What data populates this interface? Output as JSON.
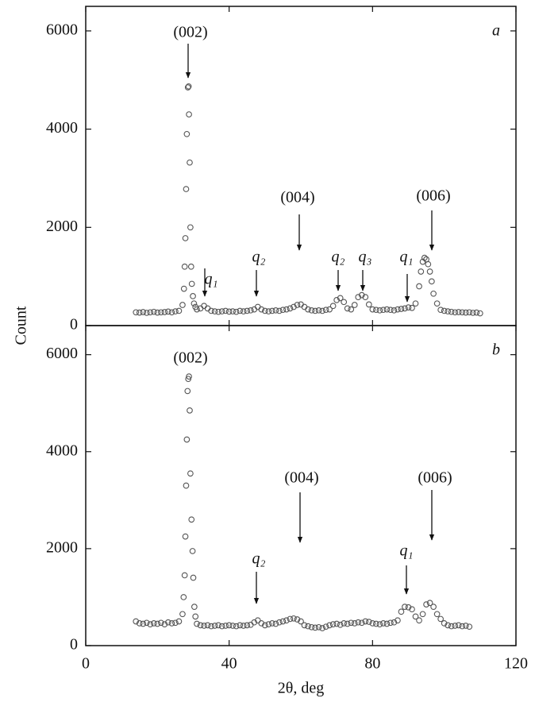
{
  "chart_data": [
    {
      "type": "scatter",
      "panel": "a",
      "ylabel": "Count",
      "x": [
        14,
        15,
        16,
        17,
        18,
        19,
        20,
        21,
        22,
        23,
        24,
        25,
        26,
        27,
        27.4,
        27.6,
        27.8,
        28,
        28.2,
        28.5,
        28.7,
        28.8,
        29,
        29.2,
        29.4,
        29.6,
        29.9,
        30.2,
        30.6,
        31,
        32,
        33,
        34,
        35,
        36,
        37,
        38,
        39,
        40,
        41,
        42,
        43,
        44,
        45,
        46,
        47,
        48,
        49,
        50,
        51,
        52,
        53,
        54,
        55,
        56,
        57,
        58,
        59,
        60,
        61,
        62,
        63,
        64,
        65,
        66,
        67,
        68,
        69,
        70,
        71,
        72,
        73,
        74,
        75,
        76,
        77,
        78,
        79,
        80,
        81,
        82,
        83,
        84,
        85,
        86,
        87,
        88,
        89,
        90,
        91,
        92,
        93,
        93.5,
        94,
        94.5,
        95,
        95.5,
        96,
        96.5,
        97,
        98,
        99,
        100,
        101,
        102,
        103,
        104,
        105,
        106,
        107,
        108,
        109,
        110
      ],
      "values": [
        270,
        265,
        275,
        260,
        270,
        280,
        265,
        270,
        275,
        285,
        270,
        290,
        300,
        420,
        750,
        1200,
        1780,
        2780,
        3900,
        4850,
        4870,
        4300,
        3320,
        2000,
        1200,
        850,
        600,
        450,
        380,
        330,
        350,
        400,
        350,
        300,
        290,
        280,
        290,
        300,
        285,
        290,
        280,
        300,
        290,
        300,
        310,
        330,
        380,
        330,
        300,
        290,
        300,
        310,
        300,
        320,
        330,
        350,
        380,
        420,
        430,
        380,
        330,
        310,
        300,
        310,
        300,
        320,
        330,
        400,
        520,
        560,
        480,
        350,
        330,
        420,
        580,
        620,
        580,
        430,
        330,
        320,
        310,
        320,
        330,
        320,
        310,
        330,
        340,
        350,
        370,
        360,
        450,
        800,
        1100,
        1300,
        1380,
        1350,
        1250,
        1100,
        900,
        650,
        450,
        320,
        300,
        290,
        280,
        270,
        275,
        270,
        265,
        270,
        260,
        265,
        250
      ],
      "xlim": [
        0,
        120
      ],
      "xticks": [
        0,
        40,
        80,
        120
      ],
      "ylim": [
        0,
        6500
      ],
      "yticks": [
        0,
        2000,
        4000,
        6000
      ],
      "annotations": [
        "(002)",
        "q₁",
        "q₂",
        "(004)",
        "q₂",
        "q₃",
        "q₁",
        "(006)"
      ]
    },
    {
      "type": "scatter",
      "panel": "b",
      "xlabel": "2θ, deg",
      "x": [
        14,
        15,
        16,
        17,
        18,
        19,
        20,
        21,
        22,
        23,
        24,
        25,
        26,
        27,
        27.3,
        27.6,
        27.8,
        28,
        28.2,
        28.4,
        28.6,
        28.8,
        29,
        29.2,
        29.5,
        29.8,
        30,
        30.3,
        30.6,
        31,
        32,
        33,
        34,
        35,
        36,
        37,
        38,
        39,
        40,
        41,
        42,
        43,
        44,
        45,
        46,
        47,
        48,
        49,
        50,
        51,
        52,
        53,
        54,
        55,
        56,
        57,
        58,
        59,
        60,
        61,
        62,
        63,
        64,
        65,
        66,
        67,
        68,
        69,
        70,
        71,
        72,
        73,
        74,
        75,
        76,
        77,
        78,
        79,
        80,
        81,
        82,
        83,
        84,
        85,
        86,
        87,
        88,
        89,
        90,
        91,
        92,
        93,
        94,
        95,
        96,
        97,
        98,
        99,
        100,
        101,
        102,
        103,
        104,
        105,
        106,
        107
      ],
      "values": [
        500,
        460,
        450,
        470,
        440,
        460,
        450,
        470,
        440,
        480,
        460,
        470,
        500,
        650,
        1000,
        1450,
        2250,
        3300,
        4250,
        5250,
        5500,
        5550,
        4850,
        3550,
        2600,
        1950,
        1400,
        800,
        600,
        450,
        420,
        410,
        420,
        400,
        410,
        420,
        400,
        410,
        420,
        410,
        400,
        420,
        410,
        420,
        430,
        480,
        520,
        460,
        420,
        440,
        460,
        450,
        480,
        500,
        520,
        550,
        560,
        540,
        500,
        420,
        400,
        380,
        370,
        380,
        360,
        390,
        420,
        440,
        450,
        430,
        460,
        450,
        470,
        460,
        480,
        470,
        500,
        490,
        460,
        450,
        440,
        460,
        450,
        470,
        480,
        520,
        700,
        800,
        790,
        750,
        600,
        520,
        650,
        850,
        880,
        800,
        650,
        550,
        460,
        420,
        400,
        410,
        420,
        400,
        410,
        390
      ],
      "xlim": [
        0,
        120
      ],
      "xticks": [
        0,
        40,
        80,
        120
      ],
      "ylim": [
        0,
        6600
      ],
      "yticks": [
        0,
        2000,
        4000,
        6000
      ],
      "annotations": [
        "(002)",
        "q₂",
        "(004)",
        "q₁",
        "(006)"
      ]
    }
  ]
}
